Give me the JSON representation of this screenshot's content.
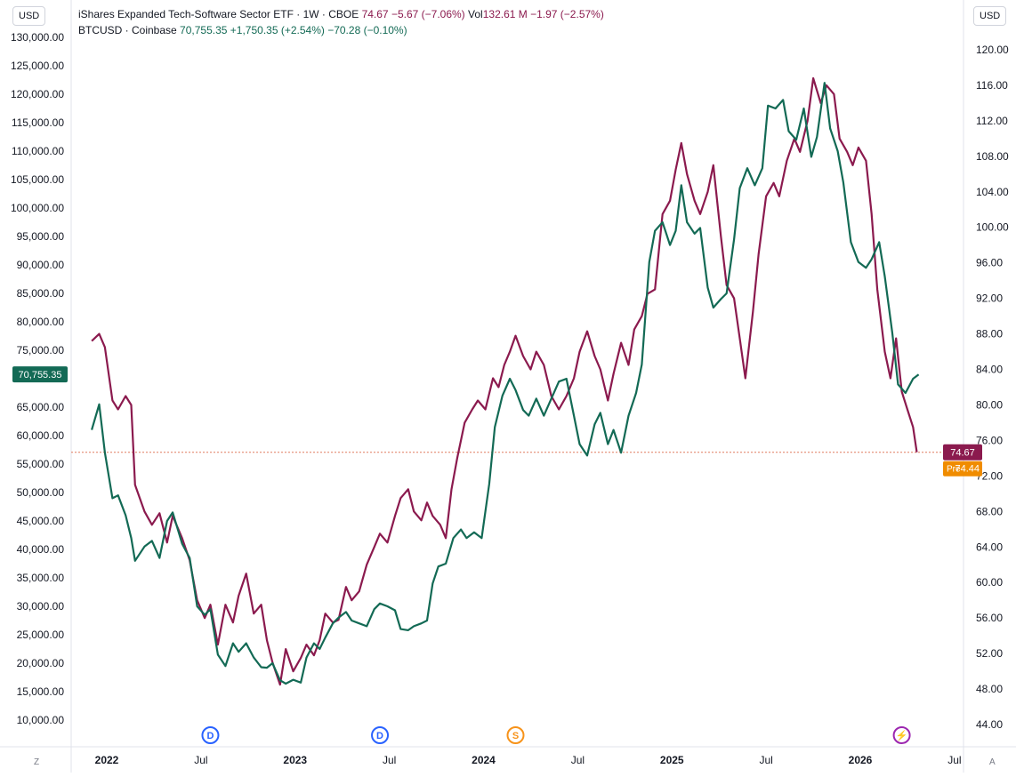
{
  "left_scale_label": "USD",
  "right_scale_label": "USD",
  "legend": {
    "etf_name": "iShares Expanded Tech-Software Sector ETF · 1W · CBOE",
    "etf_price": "74.67",
    "etf_change": "−5.67 (−7.06%)",
    "vol_label": "Vol",
    "vol_value": "132.61 M",
    "vol_change": "−1.97 (−2.57%)",
    "btc_name": "BTCUSD · Coinbase",
    "btc_price": "70,755.35",
    "btc_change": "+1,750.35 (+2.54%)",
    "btc_change2": "−70.28 (−0.10%)"
  },
  "price_tags": {
    "btc_left": "70,755.35",
    "etf_right": "74.67",
    "pre_label": "Pre",
    "pre_value": "74.44"
  },
  "colors": {
    "etf": "#8b1a4e",
    "btc": "#136a55",
    "premarket": "#f08c00",
    "dotted_line": "#e07a5f",
    "event_blue": "#2962ff",
    "event_orange": "#f7931a",
    "event_purple": "#9c27b0"
  },
  "corner_labels": {
    "bottom_left": "Z",
    "bottom_right": "A"
  },
  "events": [
    {
      "type": "dividend",
      "letter": "D",
      "date": "2022.55"
    },
    {
      "type": "dividend",
      "letter": "D",
      "date": "2023.45"
    },
    {
      "type": "split",
      "letter": "S",
      "date": "2024.17"
    },
    {
      "type": "earnings",
      "letter": "⚡",
      "date": "2026.22"
    }
  ],
  "chart_data": {
    "type": "line",
    "title": "",
    "x_axis": {
      "type": "time",
      "ticks": [
        {
          "label": "2022",
          "value": 2022.0,
          "bold": true
        },
        {
          "label": "Jul",
          "value": 2022.5
        },
        {
          "label": "2023",
          "value": 2023.0,
          "bold": true
        },
        {
          "label": "Jul",
          "value": 2023.5
        },
        {
          "label": "2024",
          "value": 2024.0,
          "bold": true
        },
        {
          "label": "Jul",
          "value": 2024.5
        },
        {
          "label": "2025",
          "value": 2025.0,
          "bold": true
        },
        {
          "label": "Jul",
          "value": 2025.5
        },
        {
          "label": "2026",
          "value": 2026.0,
          "bold": true
        },
        {
          "label": "Jul",
          "value": 2026.5
        }
      ]
    },
    "left_axis": {
      "label": "USD",
      "ylim": [
        10000,
        130000
      ],
      "ticks": [
        "10,000.00",
        "15,000.00",
        "20,000.00",
        "25,000.00",
        "30,000.00",
        "35,000.00",
        "40,000.00",
        "45,000.00",
        "50,000.00",
        "55,000.00",
        "60,000.00",
        "65,000.00",
        "75,000.00",
        "80,000.00",
        "85,000.00",
        "90,000.00",
        "95,000.00",
        "100,000.00",
        "105,000.00",
        "110,000.00",
        "115,000.00",
        "120,000.00",
        "125,000.00",
        "130,000.00"
      ],
      "tick_values": [
        10000,
        15000,
        20000,
        25000,
        30000,
        35000,
        40000,
        45000,
        50000,
        55000,
        60000,
        65000,
        75000,
        80000,
        85000,
        90000,
        95000,
        100000,
        105000,
        110000,
        115000,
        120000,
        125000,
        130000
      ]
    },
    "right_axis": {
      "label": "USD",
      "ylim": [
        44,
        120
      ],
      "ticks": [
        "44.00",
        "48.00",
        "52.00",
        "56.00",
        "60.00",
        "64.00",
        "68.00",
        "72.00",
        "76.00",
        "80.00",
        "84.00",
        "88.00",
        "92.00",
        "96.00",
        "100.00",
        "104.00",
        "108.00",
        "112.00",
        "116.00",
        "120.00"
      ],
      "tick_values": [
        44,
        48,
        52,
        56,
        60,
        64,
        68,
        72,
        76,
        80,
        84,
        88,
        92,
        96,
        100,
        104,
        108,
        112,
        116,
        120
      ]
    },
    "series": [
      {
        "name": "iShares Expanded Tech-Software Sector ETF",
        "axis": "right",
        "points": [
          [
            2021.92,
            87.2
          ],
          [
            2021.96,
            88.0
          ],
          [
            2021.99,
            86.5
          ],
          [
            2022.03,
            80.5
          ],
          [
            2022.06,
            79.5
          ],
          [
            2022.1,
            81.0
          ],
          [
            2022.13,
            80.0
          ],
          [
            2022.15,
            71.0
          ],
          [
            2022.2,
            68.0
          ],
          [
            2022.24,
            66.5
          ],
          [
            2022.28,
            67.8
          ],
          [
            2022.32,
            64.5
          ],
          [
            2022.35,
            67.5
          ],
          [
            2022.4,
            65.0
          ],
          [
            2022.44,
            62.5
          ],
          [
            2022.48,
            58.0
          ],
          [
            2022.52,
            56.0
          ],
          [
            2022.55,
            57.5
          ],
          [
            2022.59,
            53.0
          ],
          [
            2022.63,
            57.5
          ],
          [
            2022.67,
            55.5
          ],
          [
            2022.7,
            58.5
          ],
          [
            2022.74,
            61.0
          ],
          [
            2022.78,
            56.5
          ],
          [
            2022.82,
            57.5
          ],
          [
            2022.85,
            53.5
          ],
          [
            2022.88,
            51.0
          ],
          [
            2022.92,
            48.5
          ],
          [
            2022.95,
            52.5
          ],
          [
            2022.99,
            50.0
          ],
          [
            2023.03,
            51.5
          ],
          [
            2023.06,
            53.0
          ],
          [
            2023.1,
            51.8
          ],
          [
            2023.13,
            53.5
          ],
          [
            2023.16,
            56.5
          ],
          [
            2023.2,
            55.5
          ],
          [
            2023.23,
            55.8
          ],
          [
            2023.27,
            59.5
          ],
          [
            2023.3,
            58.0
          ],
          [
            2023.34,
            59.0
          ],
          [
            2023.38,
            62.0
          ],
          [
            2023.42,
            64.0
          ],
          [
            2023.45,
            65.5
          ],
          [
            2023.49,
            64.5
          ],
          [
            2023.53,
            67.5
          ],
          [
            2023.56,
            69.5
          ],
          [
            2023.6,
            70.5
          ],
          [
            2023.63,
            68.0
          ],
          [
            2023.67,
            67.0
          ],
          [
            2023.7,
            69.0
          ],
          [
            2023.73,
            67.5
          ],
          [
            2023.77,
            66.5
          ],
          [
            2023.8,
            65.0
          ],
          [
            2023.83,
            70.5
          ],
          [
            2023.86,
            74.0
          ],
          [
            2023.9,
            78.0
          ],
          [
            2023.94,
            79.5
          ],
          [
            2023.97,
            80.5
          ],
          [
            2024.01,
            79.5
          ],
          [
            2024.05,
            83.0
          ],
          [
            2024.08,
            82.0
          ],
          [
            2024.11,
            84.5
          ],
          [
            2024.14,
            86.0
          ],
          [
            2024.17,
            87.8
          ],
          [
            2024.21,
            85.5
          ],
          [
            2024.25,
            84.0
          ],
          [
            2024.28,
            86.0
          ],
          [
            2024.32,
            84.5
          ],
          [
            2024.36,
            81.0
          ],
          [
            2024.4,
            79.5
          ],
          [
            2024.44,
            81.0
          ],
          [
            2024.48,
            83.0
          ],
          [
            2024.51,
            86.0
          ],
          [
            2024.55,
            88.3
          ],
          [
            2024.59,
            85.5
          ],
          [
            2024.62,
            84.0
          ],
          [
            2024.66,
            80.5
          ],
          [
            2024.69,
            83.5
          ],
          [
            2024.73,
            87.0
          ],
          [
            2024.77,
            84.5
          ],
          [
            2024.8,
            88.5
          ],
          [
            2024.84,
            90.0
          ],
          [
            2024.87,
            92.5
          ],
          [
            2024.91,
            93.0
          ],
          [
            2024.95,
            101.5
          ],
          [
            2024.99,
            103.0
          ],
          [
            2025.02,
            106.5
          ],
          [
            2025.05,
            109.5
          ],
          [
            2025.08,
            106.0
          ],
          [
            2025.12,
            103.0
          ],
          [
            2025.15,
            101.5
          ],
          [
            2025.19,
            104.0
          ],
          [
            2025.22,
            107.0
          ],
          [
            2025.26,
            99.0
          ],
          [
            2025.29,
            93.5
          ],
          [
            2025.33,
            92.0
          ],
          [
            2025.36,
            87.5
          ],
          [
            2025.39,
            83.0
          ],
          [
            2025.43,
            90.5
          ],
          [
            2025.46,
            97.0
          ],
          [
            2025.5,
            103.5
          ],
          [
            2025.54,
            105.0
          ],
          [
            2025.57,
            103.5
          ],
          [
            2025.61,
            107.5
          ],
          [
            2025.65,
            110.0
          ],
          [
            2025.68,
            108.5
          ],
          [
            2025.72,
            112.0
          ],
          [
            2025.75,
            116.8
          ],
          [
            2025.79,
            114.0
          ],
          [
            2025.82,
            116.0
          ],
          [
            2025.86,
            115.0
          ],
          [
            2025.89,
            110.0
          ],
          [
            2025.93,
            108.5
          ],
          [
            2025.96,
            107.0
          ],
          [
            2025.99,
            109.0
          ],
          [
            2026.03,
            107.5
          ],
          [
            2026.06,
            101.5
          ],
          [
            2026.09,
            93.0
          ],
          [
            2026.13,
            86.0
          ],
          [
            2026.16,
            83.0
          ],
          [
            2026.19,
            87.5
          ],
          [
            2026.22,
            81.5
          ],
          [
            2026.25,
            79.5
          ],
          [
            2026.28,
            77.5
          ],
          [
            2026.3,
            74.67
          ]
        ]
      },
      {
        "name": "BTCUSD",
        "axis": "left",
        "points": [
          [
            2021.92,
            61000
          ],
          [
            2021.96,
            65500
          ],
          [
            2021.99,
            57000
          ],
          [
            2022.03,
            49000
          ],
          [
            2022.06,
            49500
          ],
          [
            2022.1,
            46000
          ],
          [
            2022.13,
            42000
          ],
          [
            2022.15,
            38000
          ],
          [
            2022.2,
            40500
          ],
          [
            2022.24,
            41500
          ],
          [
            2022.28,
            38500
          ],
          [
            2022.32,
            45000
          ],
          [
            2022.35,
            46500
          ],
          [
            2022.4,
            41000
          ],
          [
            2022.44,
            38500
          ],
          [
            2022.48,
            30000
          ],
          [
            2022.52,
            28500
          ],
          [
            2022.55,
            29500
          ],
          [
            2022.59,
            21500
          ],
          [
            2022.63,
            19500
          ],
          [
            2022.67,
            23500
          ],
          [
            2022.7,
            22000
          ],
          [
            2022.74,
            23500
          ],
          [
            2022.78,
            21000
          ],
          [
            2022.82,
            19300
          ],
          [
            2022.85,
            19200
          ],
          [
            2022.88,
            20000
          ],
          [
            2022.92,
            17000
          ],
          [
            2022.95,
            16400
          ],
          [
            2022.99,
            17100
          ],
          [
            2023.03,
            16600
          ],
          [
            2023.06,
            21000
          ],
          [
            2023.1,
            23500
          ],
          [
            2023.13,
            22500
          ],
          [
            2023.16,
            24500
          ],
          [
            2023.2,
            27000
          ],
          [
            2023.23,
            28000
          ],
          [
            2023.27,
            29000
          ],
          [
            2023.3,
            27500
          ],
          [
            2023.34,
            27000
          ],
          [
            2023.38,
            26500
          ],
          [
            2023.42,
            29500
          ],
          [
            2023.45,
            30500
          ],
          [
            2023.49,
            30000
          ],
          [
            2023.53,
            29300
          ],
          [
            2023.56,
            26000
          ],
          [
            2023.6,
            25800
          ],
          [
            2023.63,
            26500
          ],
          [
            2023.67,
            27000
          ],
          [
            2023.7,
            27500
          ],
          [
            2023.73,
            34000
          ],
          [
            2023.76,
            37000
          ],
          [
            2023.8,
            37500
          ],
          [
            2023.84,
            42000
          ],
          [
            2023.88,
            43500
          ],
          [
            2023.91,
            42000
          ],
          [
            2023.95,
            43000
          ],
          [
            2023.99,
            42000
          ],
          [
            2024.03,
            51500
          ],
          [
            2024.06,
            61500
          ],
          [
            2024.1,
            67000
          ],
          [
            2024.14,
            70000
          ],
          [
            2024.17,
            68000
          ],
          [
            2024.21,
            64500
          ],
          [
            2024.24,
            63500
          ],
          [
            2024.28,
            66500
          ],
          [
            2024.32,
            63500
          ],
          [
            2024.36,
            66500
          ],
          [
            2024.4,
            69500
          ],
          [
            2024.44,
            70000
          ],
          [
            2024.48,
            63500
          ],
          [
            2024.51,
            58500
          ],
          [
            2024.55,
            56500
          ],
          [
            2024.59,
            62000
          ],
          [
            2024.62,
            64000
          ],
          [
            2024.66,
            58500
          ],
          [
            2024.69,
            61000
          ],
          [
            2024.73,
            57000
          ],
          [
            2024.77,
            63500
          ],
          [
            2024.81,
            67500
          ],
          [
            2024.84,
            72500
          ],
          [
            2024.88,
            90500
          ],
          [
            2024.91,
            96000
          ],
          [
            2024.95,
            97500
          ],
          [
            2024.99,
            93500
          ],
          [
            2025.02,
            96000
          ],
          [
            2025.05,
            104000
          ],
          [
            2025.08,
            97500
          ],
          [
            2025.12,
            95500
          ],
          [
            2025.15,
            96500
          ],
          [
            2025.19,
            86000
          ],
          [
            2025.22,
            82500
          ],
          [
            2025.26,
            84000
          ],
          [
            2025.29,
            85000
          ],
          [
            2025.33,
            94500
          ],
          [
            2025.36,
            103500
          ],
          [
            2025.4,
            107000
          ],
          [
            2025.44,
            104000
          ],
          [
            2025.48,
            107000
          ],
          [
            2025.51,
            118000
          ],
          [
            2025.55,
            117500
          ],
          [
            2025.59,
            119000
          ],
          [
            2025.62,
            113500
          ],
          [
            2025.66,
            112000
          ],
          [
            2025.7,
            117500
          ],
          [
            2025.74,
            109000
          ],
          [
            2025.77,
            112500
          ],
          [
            2025.81,
            122000
          ],
          [
            2025.84,
            114000
          ],
          [
            2025.88,
            110000
          ],
          [
            2025.91,
            104500
          ],
          [
            2025.95,
            94000
          ],
          [
            2025.99,
            90500
          ],
          [
            2026.03,
            89500
          ],
          [
            2026.06,
            91000
          ],
          [
            2026.1,
            94000
          ],
          [
            2026.13,
            88000
          ],
          [
            2026.17,
            78000
          ],
          [
            2026.2,
            69000
          ],
          [
            2026.24,
            67500
          ],
          [
            2026.28,
            70000
          ],
          [
            2026.31,
            70755
          ]
        ]
      }
    ]
  }
}
